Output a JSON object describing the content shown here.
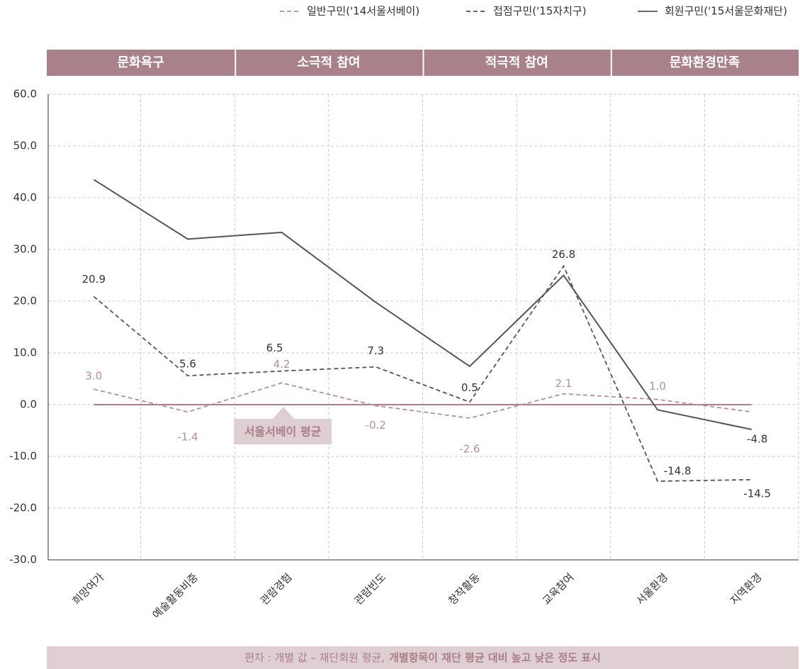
{
  "chart_data": {
    "type": "line",
    "groups": [
      "문화욕구",
      "소극적 참여",
      "적극적 참여",
      "문화환경만족"
    ],
    "categories": [
      "희망여가",
      "예술활동비중",
      "관람경험",
      "관람빈도",
      "창작활동",
      "교육참여",
      "서울환경",
      "지역환경"
    ],
    "series": [
      {
        "name": "일반구민('14서울서베이)",
        "color": "#b58e97",
        "dash": "dashed",
        "values": [
          3.0,
          -1.4,
          4.2,
          -0.2,
          -2.6,
          2.1,
          1.0,
          -1.4
        ],
        "value_labels": [
          "3.0",
          "-1.4",
          "4.2",
          "-0.2",
          "-2.6",
          "2.1",
          "1.0",
          null
        ]
      },
      {
        "name": "접점구민('15자치구)",
        "color": "#555555",
        "dash": "dashed",
        "values": [
          20.9,
          5.6,
          6.5,
          7.3,
          0.5,
          26.8,
          -14.8,
          -14.5
        ],
        "value_labels": [
          "20.9",
          "5.6",
          "6.5",
          "7.3",
          "0.5",
          "26.8",
          "-14.8",
          "-14.5"
        ]
      },
      {
        "name": "회원구민('15서울문화재단)",
        "color": "#555555",
        "dash": "solid",
        "values": [
          43.5,
          32.0,
          33.3,
          19.8,
          7.4,
          25.0,
          -1.0,
          -4.8
        ],
        "value_labels": [
          null,
          null,
          null,
          null,
          null,
          null,
          null,
          "-4.8"
        ]
      }
    ],
    "reference": {
      "label": "서울서베이 평균",
      "value": 0,
      "color": "#a87f89"
    },
    "ylim": [
      -30,
      60
    ],
    "yticks": [
      {
        "value": 60,
        "label": "60.0"
      },
      {
        "value": 50,
        "label": "50.0"
      },
      {
        "value": 40,
        "label": "40.0"
      },
      {
        "value": 30,
        "label": "30.0"
      },
      {
        "value": 20,
        "label": "20.0"
      },
      {
        "value": 10,
        "label": "10.0"
      },
      {
        "value": 0,
        "label": "0.0"
      },
      {
        "value": -10,
        "label": "-10.0"
      },
      {
        "value": -20,
        "label": "-20.0"
      },
      {
        "value": -30,
        "label": "-30.0"
      }
    ],
    "grid": true,
    "legend": "top-right",
    "footnote": [
      "편차 : 개별 값 – 재단회원 평균,",
      "개별항목이 재단 평균 대비 높고 낮은 정도 표시"
    ]
  }
}
